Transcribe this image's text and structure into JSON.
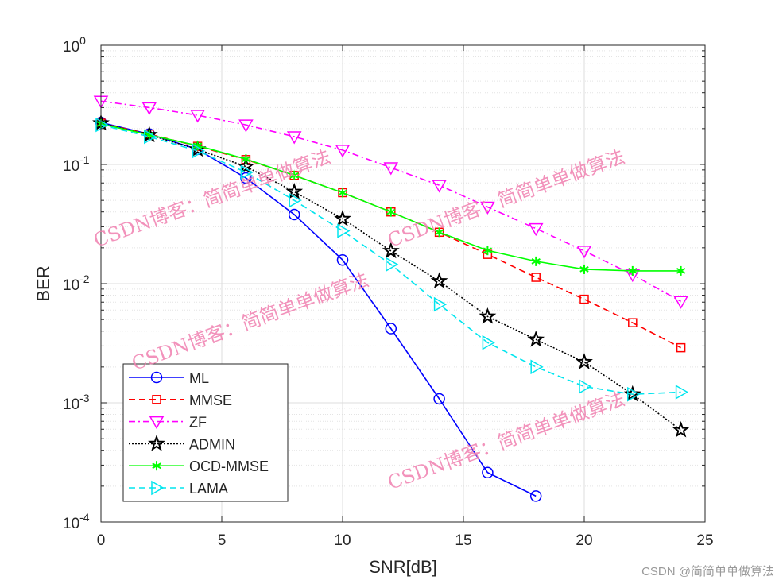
{
  "chart_data": {
    "type": "line",
    "title": "",
    "xlabel": "SNR[dB]",
    "ylabel": "BER",
    "xlim": [
      0,
      25
    ],
    "ylim": [
      0.0001,
      1
    ],
    "yscale": "log",
    "grid": true,
    "minor_grid": true,
    "legend_position": "bottom-left",
    "x_ticks": [
      "0",
      "5",
      "10",
      "15",
      "20",
      "25"
    ],
    "y_ticks": [
      {
        "base": "10",
        "exp": "0"
      },
      {
        "base": "10",
        "exp": "-1"
      },
      {
        "base": "10",
        "exp": "-2"
      },
      {
        "base": "10",
        "exp": "-3"
      },
      {
        "base": "10",
        "exp": "-4"
      }
    ],
    "series": [
      {
        "name": "ML",
        "color": "#0000ff",
        "dash": "solid",
        "marker": "circle",
        "x": [
          0,
          2,
          4,
          6,
          8,
          10,
          12,
          14,
          16,
          18
        ],
        "y": [
          0.225,
          0.18,
          0.134,
          0.077,
          0.038,
          0.0158,
          0.0042,
          0.00108,
          0.00026,
          0.000165
        ]
      },
      {
        "name": "MMSE",
        "color": "#ff0000",
        "dash": "dashed",
        "marker": "square",
        "x": [
          0,
          2,
          4,
          6,
          8,
          10,
          12,
          14,
          16,
          18,
          20,
          22,
          24
        ],
        "y": [
          0.222,
          0.18,
          0.142,
          0.11,
          0.081,
          0.058,
          0.04,
          0.027,
          0.0176,
          0.0113,
          0.0074,
          0.0047,
          0.0029
        ]
      },
      {
        "name": "ZF",
        "color": "#ff00ff",
        "dash": "dashdot",
        "marker": "triangle-down",
        "x": [
          0,
          2,
          4,
          6,
          8,
          10,
          12,
          14,
          16,
          18,
          20,
          22,
          24
        ],
        "y": [
          0.34,
          0.3,
          0.259,
          0.215,
          0.171,
          0.132,
          0.094,
          0.067,
          0.044,
          0.029,
          0.0188,
          0.0119,
          0.0071
        ]
      },
      {
        "name": "ADMIN",
        "color": "#000000",
        "dash": "dotted",
        "marker": "pentagram",
        "x": [
          0,
          2,
          4,
          6,
          8,
          10,
          12,
          14,
          16,
          18,
          20,
          22,
          24
        ],
        "y": [
          0.222,
          0.177,
          0.134,
          0.096,
          0.059,
          0.035,
          0.0188,
          0.0105,
          0.0053,
          0.0034,
          0.0022,
          0.00118,
          0.00059
        ]
      },
      {
        "name": "OCD-MMSE",
        "color": "#00ff00",
        "dash": "solid",
        "marker": "asterisk",
        "x": [
          0,
          2,
          4,
          6,
          8,
          10,
          12,
          14,
          16,
          18,
          20,
          22,
          24
        ],
        "y": [
          0.219,
          0.177,
          0.144,
          0.111,
          0.081,
          0.058,
          0.04,
          0.027,
          0.019,
          0.0154,
          0.0132,
          0.0128,
          0.0128
        ]
      },
      {
        "name": "LAMA",
        "color": "#00e5ee",
        "dash": "dashed",
        "marker": "triangle-right",
        "x": [
          0,
          2,
          4,
          6,
          8,
          10,
          12,
          14,
          16,
          18,
          20,
          22,
          24
        ],
        "y": [
          0.215,
          0.171,
          0.13,
          0.086,
          0.05,
          0.0277,
          0.0145,
          0.0067,
          0.0032,
          0.002,
          0.00137,
          0.00118,
          0.00123
        ]
      }
    ]
  },
  "watermark": "CSDN博客：简简单单做算法",
  "credit": "CSDN @简简单单做算法"
}
